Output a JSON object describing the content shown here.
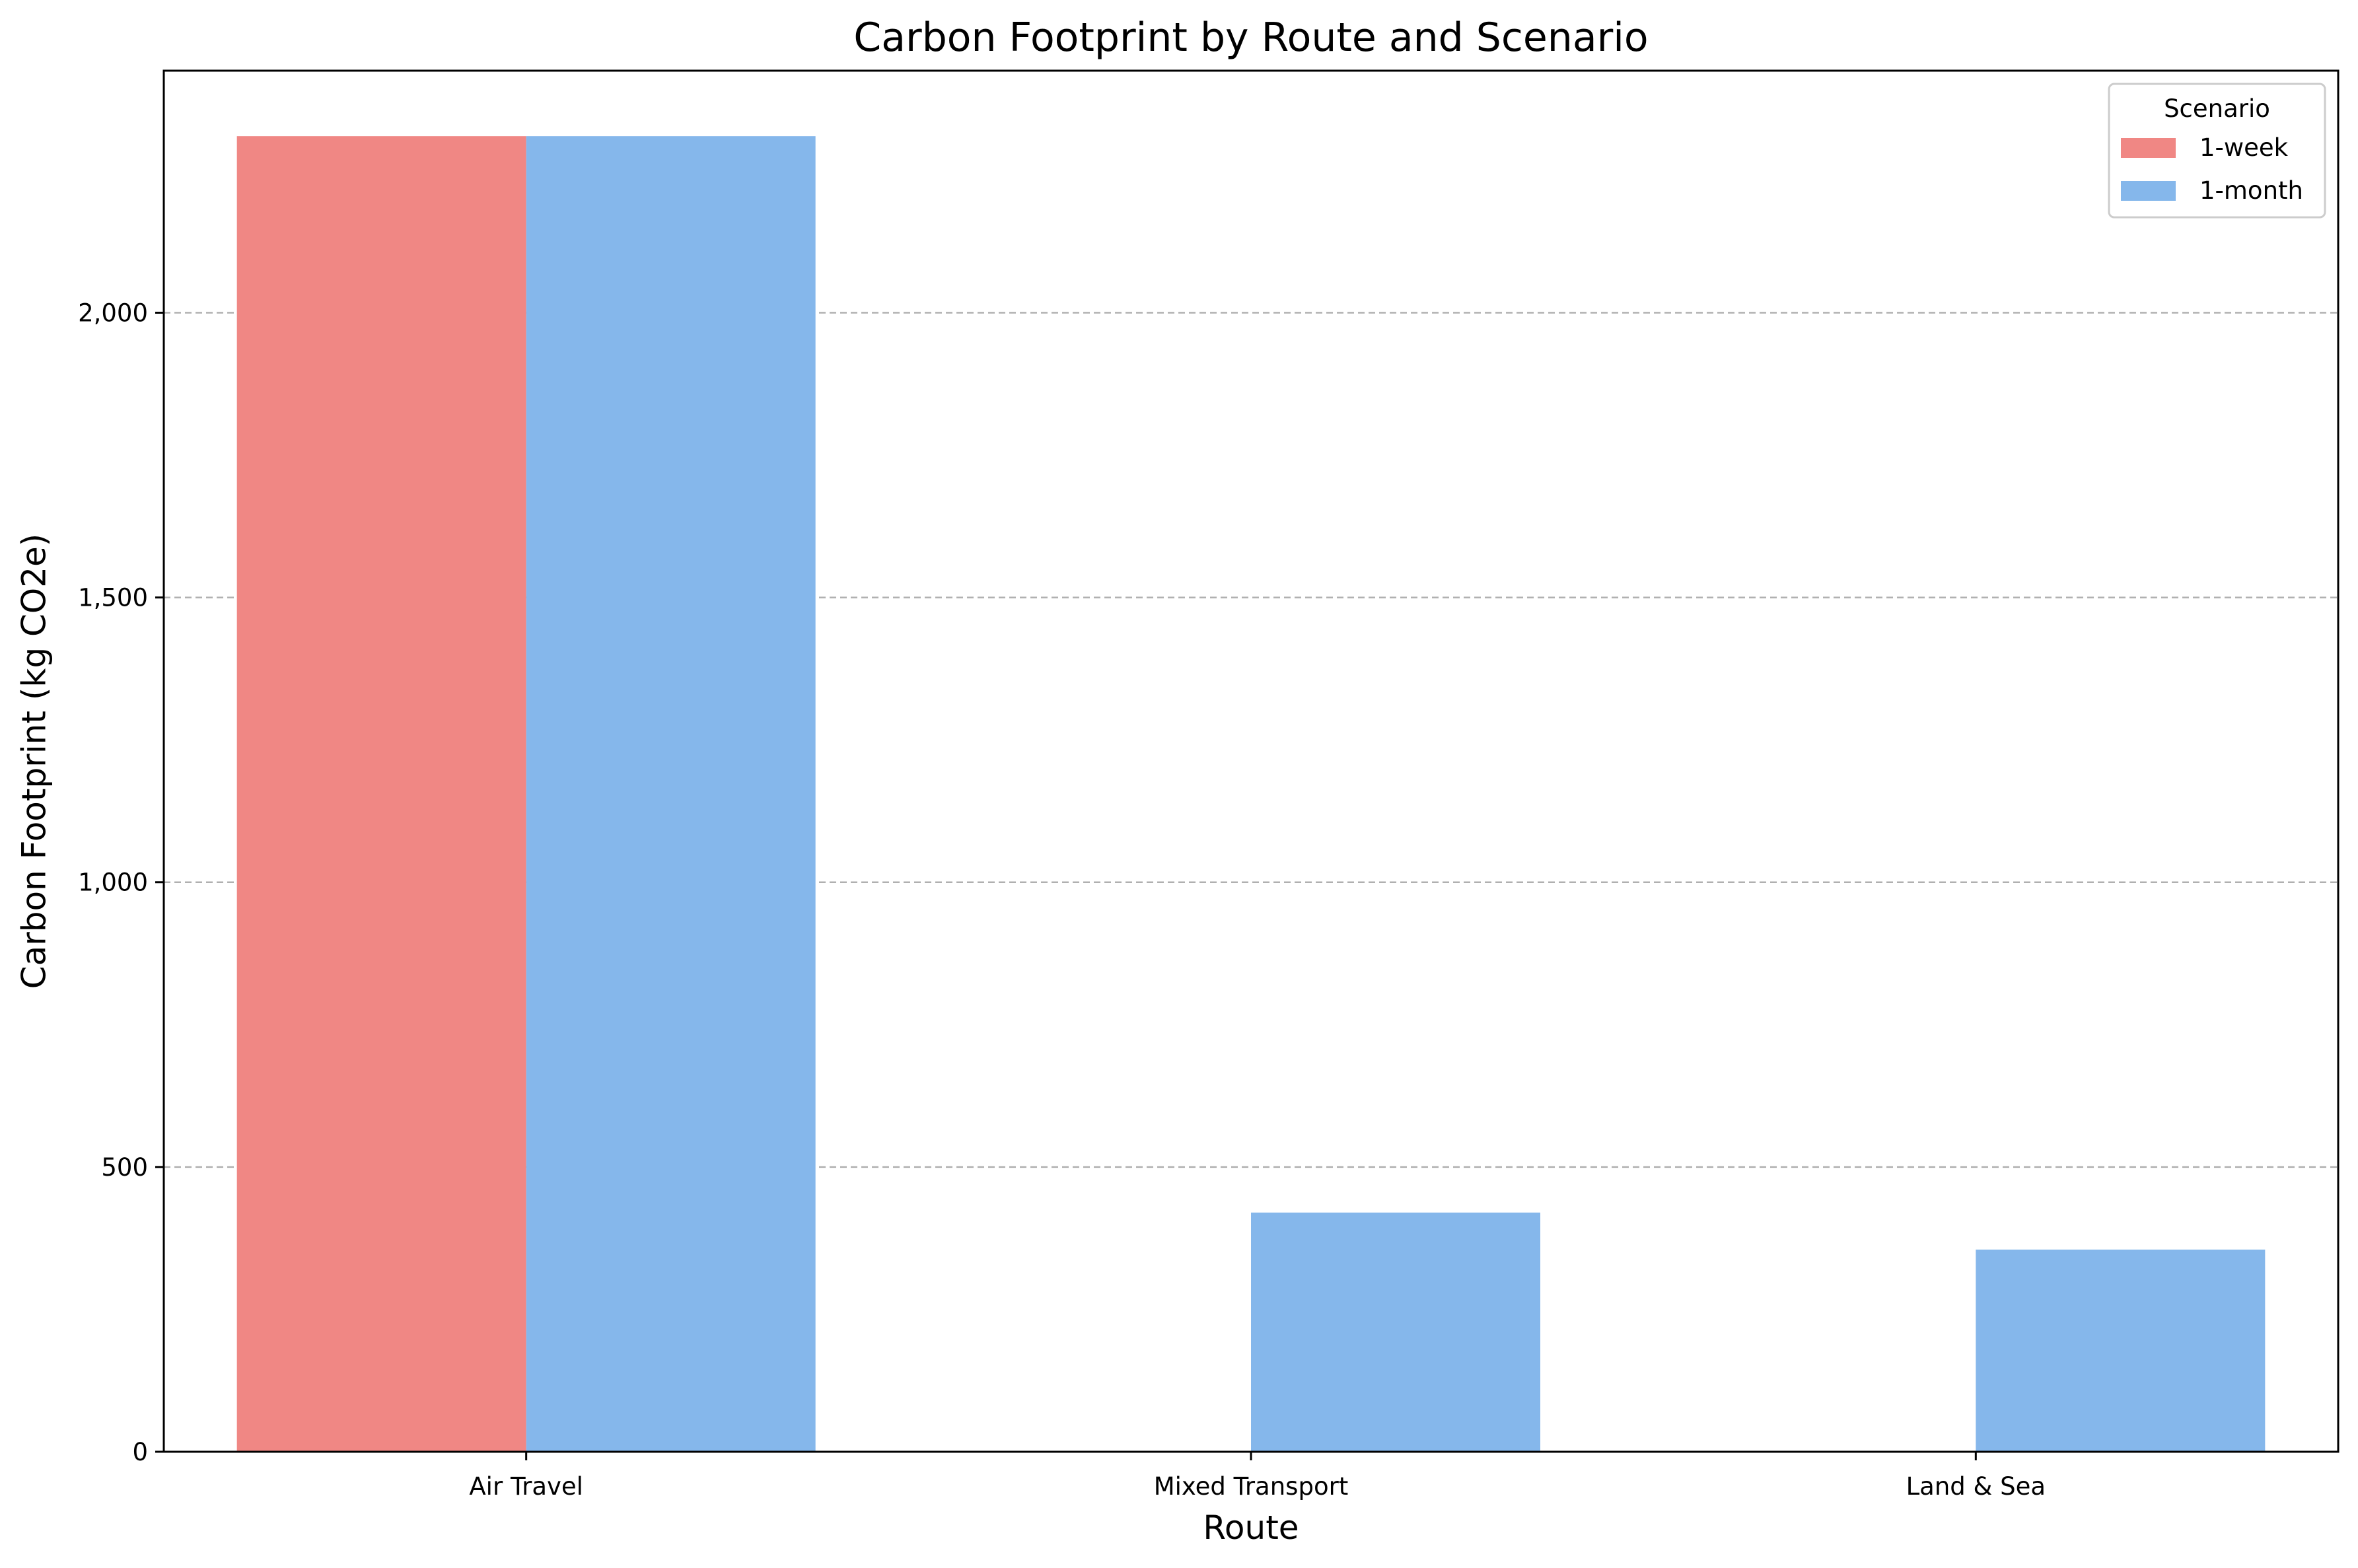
{
  "chart_data": {
    "type": "bar",
    "title": "Carbon Footprint by Route and Scenario",
    "xlabel": "Route",
    "ylabel": "Carbon Footprint (kg CO2e)",
    "categories": [
      "Air Travel",
      "Mixed Transport",
      "Land & Sea"
    ],
    "series": [
      {
        "name": "1-week",
        "color": "#f08784",
        "values": [
          2310,
          0,
          0
        ]
      },
      {
        "name": "1-month",
        "color": "#85b7eb",
        "values": [
          2310,
          420,
          355
        ]
      }
    ],
    "ylim": [
      0,
      2425
    ],
    "yticks": [
      0,
      500,
      1000,
      1500,
      2000
    ],
    "ytick_labels": [
      "0",
      "500",
      "1,000",
      "1,500",
      "2,000"
    ],
    "grid": "y-dashed",
    "legend": {
      "title": "Scenario",
      "position": "top-right"
    }
  }
}
